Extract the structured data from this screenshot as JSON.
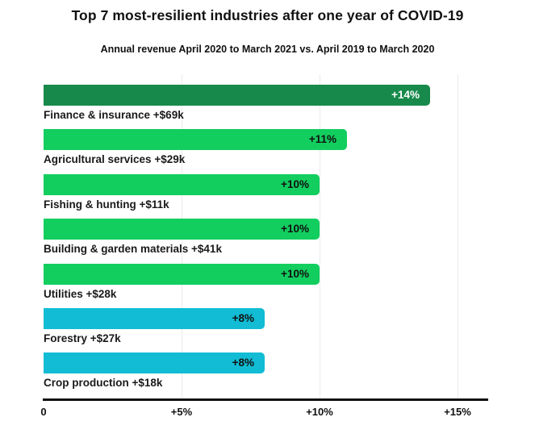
{
  "title": "Top 7 most-resilient industries after one year of COVID-19",
  "subtitle": "Annual revenue April 2020 to March 2021 vs. April 2019 to March 2020",
  "colors": {
    "dark_green": "#178a4b",
    "bright_green": "#12ce5e",
    "cyan": "#11bcd4",
    "gridline": "#ebebeb",
    "axis": "#111111",
    "text_dark": "#1a1a1a",
    "text_light": "#ffffff"
  },
  "chart_data": {
    "type": "bar",
    "orientation": "horizontal",
    "title": "Top 7 most-resilient industries after one year of COVID-19",
    "subtitle": "Annual revenue April 2020 to March 2021 vs. April 2019 to March 2020",
    "categories": [
      "Finance & insurance +$69k",
      "Agricultural services +$29k",
      "Fishing & hunting +$11k",
      "Building & garden materials +$41k",
      "Utilities +$28k",
      "Forestry +$27k",
      "Crop production +$18k"
    ],
    "values": [
      14,
      11,
      10,
      10,
      10,
      8,
      8
    ],
    "value_labels": [
      "+14%",
      "+11%",
      "+10%",
      "+10%",
      "+10%",
      "+8%",
      "+8%"
    ],
    "bar_colors": [
      "#178a4b",
      "#12ce5e",
      "#12ce5e",
      "#12ce5e",
      "#12ce5e",
      "#11bcd4",
      "#11bcd4"
    ],
    "value_label_colors": [
      "#ffffff",
      "#111111",
      "#111111",
      "#111111",
      "#111111",
      "#111111",
      "#111111"
    ],
    "xlim": [
      0,
      15
    ],
    "x_ticks": [
      {
        "value": 0,
        "label": "0"
      },
      {
        "value": 5,
        "label": "+5%"
      },
      {
        "value": 10,
        "label": "+10%"
      },
      {
        "value": 15,
        "label": "+15%"
      }
    ],
    "gridline_values": [
      5,
      10,
      15
    ],
    "grid": "vertical",
    "legend": "none"
  },
  "layout_note": ""
}
